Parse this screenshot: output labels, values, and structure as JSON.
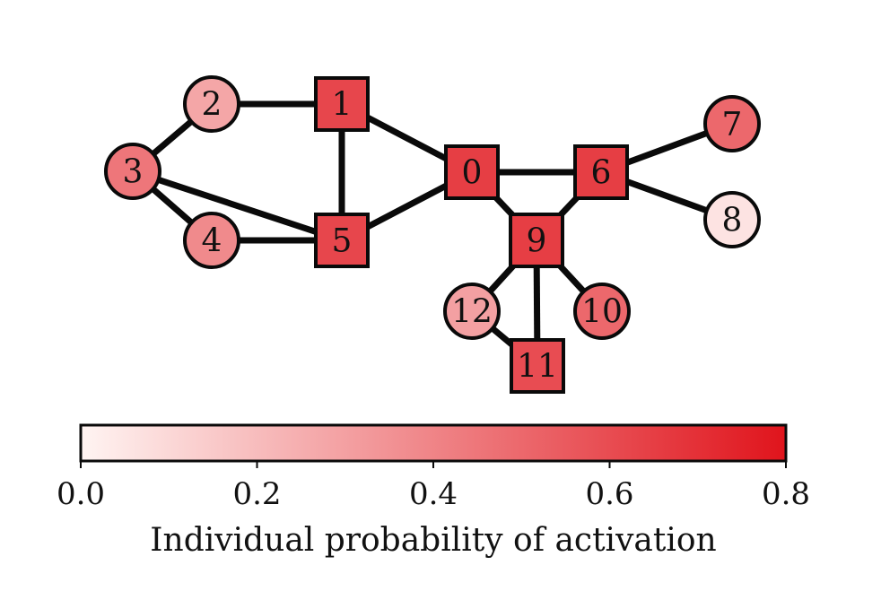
{
  "graph": {
    "nodes": [
      {
        "id": "0",
        "label": "0",
        "shape": "square",
        "value": 0.65
      },
      {
        "id": "1",
        "label": "1",
        "shape": "square",
        "value": 0.62
      },
      {
        "id": "2",
        "label": "2",
        "shape": "circle",
        "value": 0.28
      },
      {
        "id": "3",
        "label": "3",
        "shape": "circle",
        "value": 0.45
      },
      {
        "id": "4",
        "label": "4",
        "shape": "circle",
        "value": 0.38
      },
      {
        "id": "5",
        "label": "5",
        "shape": "square",
        "value": 0.62
      },
      {
        "id": "6",
        "label": "6",
        "shape": "square",
        "value": 0.65
      },
      {
        "id": "7",
        "label": "7",
        "shape": "circle",
        "value": 0.5
      },
      {
        "id": "8",
        "label": "8",
        "shape": "circle",
        "value": 0.06
      },
      {
        "id": "9",
        "label": "9",
        "shape": "square",
        "value": 0.65
      },
      {
        "id": "10",
        "label": "10",
        "shape": "circle",
        "value": 0.5
      },
      {
        "id": "11",
        "label": "11",
        "shape": "square",
        "value": 0.6
      },
      {
        "id": "12",
        "label": "12",
        "shape": "circle",
        "value": 0.3
      }
    ],
    "edges": [
      [
        "2",
        "1"
      ],
      [
        "3",
        "2"
      ],
      [
        "3",
        "4"
      ],
      [
        "3",
        "5"
      ],
      [
        "4",
        "5"
      ],
      [
        "1",
        "5"
      ],
      [
        "1",
        "0"
      ],
      [
        "5",
        "0"
      ],
      [
        "0",
        "6"
      ],
      [
        "0",
        "9"
      ],
      [
        "6",
        "9"
      ],
      [
        "6",
        "7"
      ],
      [
        "6",
        "8"
      ],
      [
        "9",
        "12"
      ],
      [
        "9",
        "10"
      ],
      [
        "9",
        "11"
      ],
      [
        "12",
        "11"
      ]
    ]
  },
  "colorbar": {
    "label": "Individual probability of activation",
    "min": 0.0,
    "max": 0.8,
    "ticks": [
      "0.0",
      "0.2",
      "0.4",
      "0.6",
      "0.8"
    ],
    "color_low": "#fff4f2",
    "color_high": "#e0141c"
  },
  "colors": {
    "edge": "#0a0a0a",
    "node_stroke": "#0a0a0a"
  }
}
